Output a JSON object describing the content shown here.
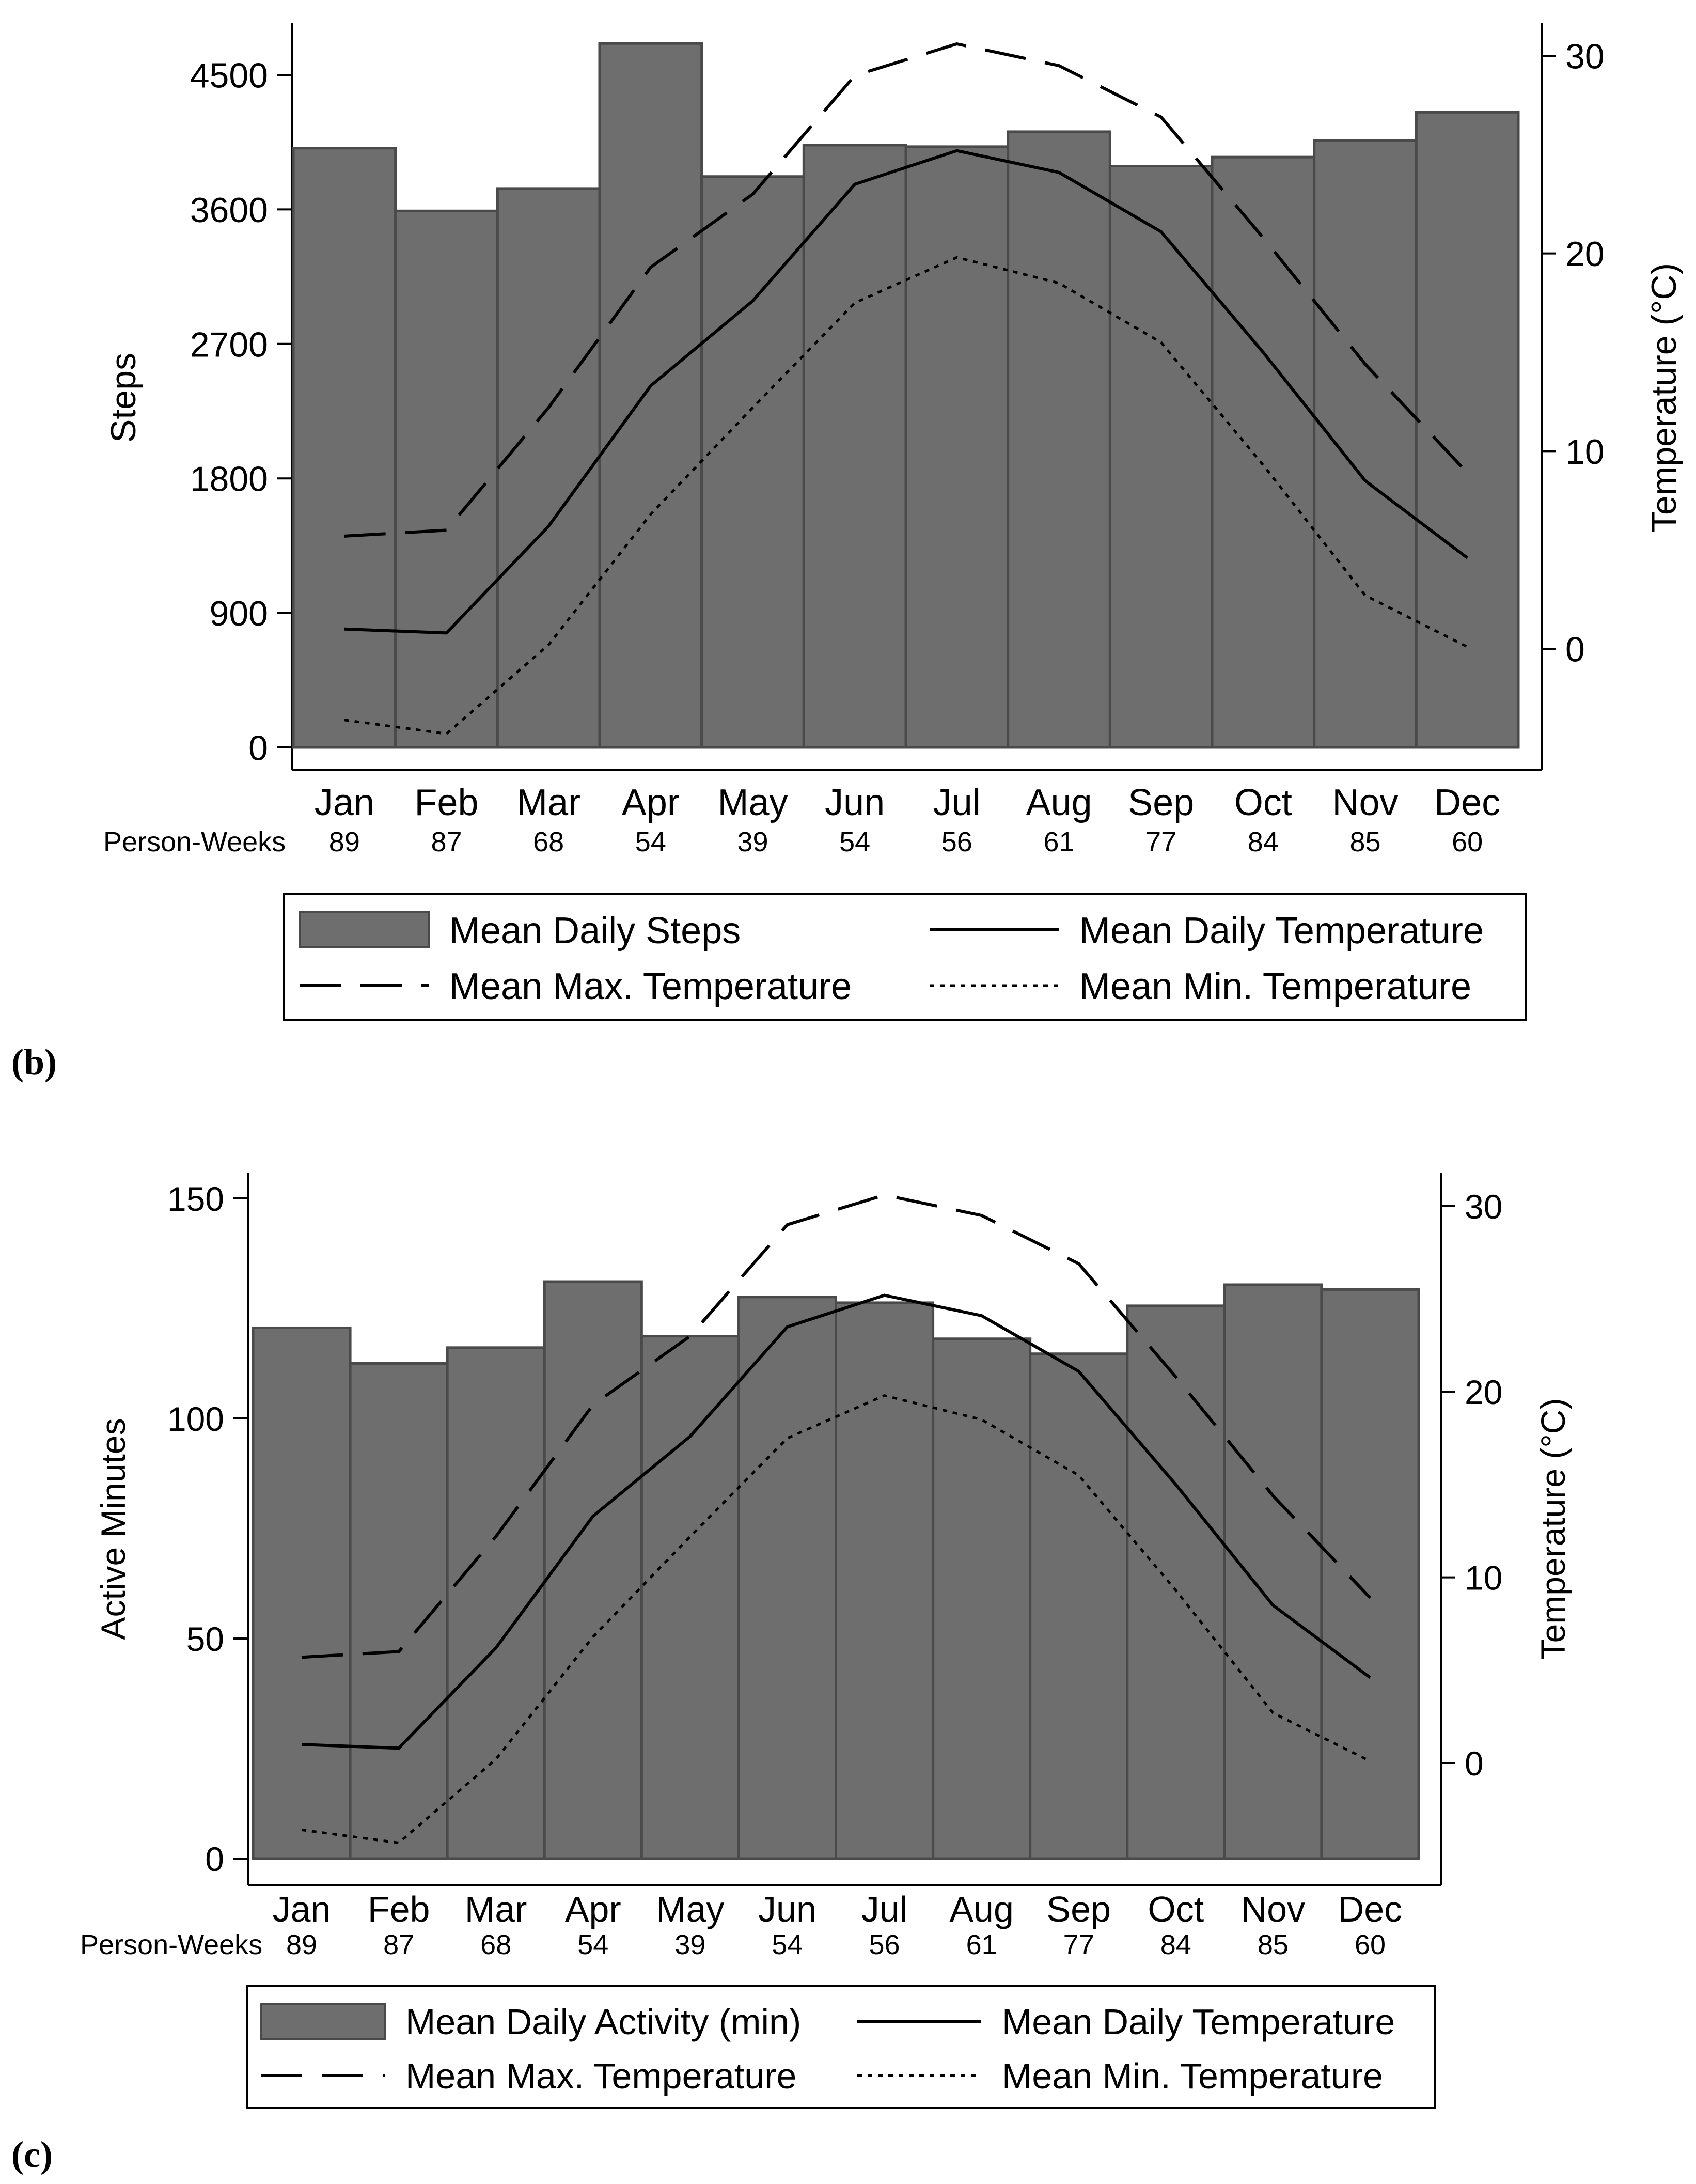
{
  "colors": {
    "bar_fill": "#6e6e6e",
    "bar_stroke": "#4a4a4a",
    "line": "#000000",
    "frame": "#000000",
    "background": "#ffffff"
  },
  "chart_data": [
    {
      "type": "bar+line",
      "panel_label": "b",
      "categories": [
        "Jan",
        "Feb",
        "Mar",
        "Apr",
        "May",
        "Jun",
        "Jul",
        "Aug",
        "Sep",
        "Oct",
        "Nov",
        "Dec"
      ],
      "person_weeks_title": "Person-Weeks",
      "person_weeks": [
        "89",
        "87",
        "68",
        "54",
        "39",
        "54",
        "56",
        "61",
        "77",
        "84",
        "85",
        "60"
      ],
      "left_axis": {
        "label": "Steps",
        "ticks": [
          0,
          900,
          1800,
          2700,
          3600,
          4500
        ],
        "tick_labels": [
          "0",
          "900",
          "1800",
          "2700",
          "3600",
          "4500"
        ],
        "range": [
          -15,
          4950
        ]
      },
      "right_axis": {
        "label": "Temperature (°C)",
        "ticks": [
          0,
          10,
          20,
          30
        ],
        "tick_labels": [
          "0",
          "10",
          "20",
          "30"
        ],
        "range": [
          -5,
          32
        ]
      },
      "series": [
        {
          "name": "Mean Daily Steps",
          "kind": "bar",
          "axis": "left",
          "values": [
            4010,
            3590,
            3740,
            4710,
            3820,
            4030,
            4020,
            4120,
            3890,
            3950,
            4060,
            4250
          ]
        },
        {
          "name": "Mean Daily Temperature",
          "kind": "line",
          "style": "solid",
          "axis": "right",
          "values": [
            1.0,
            0.8,
            6.2,
            13.3,
            17.6,
            23.5,
            25.2,
            24.1,
            21.1,
            15.0,
            8.5,
            4.6
          ]
        },
        {
          "name": "Mean Max. Temperature",
          "kind": "line",
          "style": "dashed",
          "axis": "right",
          "values": [
            5.7,
            6.0,
            12.2,
            19.3,
            23.0,
            29.0,
            30.6,
            29.5,
            26.9,
            20.8,
            14.4,
            8.9
          ]
        },
        {
          "name": "Mean Min. Temperature",
          "kind": "line",
          "style": "dotted",
          "axis": "right",
          "values": [
            -3.6,
            -4.3,
            0.2,
            6.8,
            12.2,
            17.5,
            19.8,
            18.5,
            15.5,
            9.3,
            2.7,
            0.1
          ]
        }
      ],
      "legend": {
        "position": "bottom",
        "items": [
          {
            "label": "Mean Daily Steps",
            "swatch": "bar"
          },
          {
            "label": "Mean Daily Temperature",
            "swatch": "solid"
          },
          {
            "label": "Mean Max. Temperature",
            "swatch": "dashed"
          },
          {
            "label": "Mean Min. Temperature",
            "swatch": "dotted"
          }
        ]
      }
    },
    {
      "type": "bar+line",
      "panel_label": "c",
      "categories": [
        "Jan",
        "Feb",
        "Mar",
        "Apr",
        "May",
        "Jun",
        "Jul",
        "Aug",
        "Sep",
        "Oct",
        "Nov",
        "Dec"
      ],
      "person_weeks_title": "Person-Weeks",
      "person_weeks": [
        "89",
        "87",
        "68",
        "54",
        "39",
        "54",
        "56",
        "61",
        "77",
        "84",
        "85",
        "60"
      ],
      "left_axis": {
        "label": "Active Minutes",
        "ticks": [
          0,
          50,
          100,
          150
        ],
        "tick_labels": [
          "0",
          "50",
          "100",
          "150"
        ],
        "range": [
          -1,
          156
        ]
      },
      "right_axis": {
        "label": "Temperature (°C)",
        "ticks": [
          0,
          10,
          20,
          30
        ],
        "tick_labels": [
          "0",
          "10",
          "20",
          "30"
        ],
        "range": [
          -5,
          32
        ]
      },
      "series": [
        {
          "name": "Mean Daily Activity (min)",
          "kind": "bar",
          "axis": "left",
          "values": [
            120.6,
            112.5,
            116.1,
            131.1,
            118.7,
            127.6,
            126.3,
            118.1,
            114.7,
            125.6,
            130.4,
            129.3
          ]
        },
        {
          "name": "Mean Daily Temperature",
          "kind": "line",
          "style": "solid",
          "axis": "right",
          "values": [
            1.0,
            0.8,
            6.2,
            13.3,
            17.6,
            23.5,
            25.2,
            24.1,
            21.1,
            15.0,
            8.5,
            4.6
          ]
        },
        {
          "name": "Mean Max. Temperature",
          "kind": "line",
          "style": "dashed",
          "axis": "right",
          "values": [
            5.7,
            6.0,
            12.2,
            19.3,
            23.0,
            29.0,
            30.6,
            29.5,
            26.9,
            20.8,
            14.4,
            8.9
          ]
        },
        {
          "name": "Mean Min. Temperature",
          "kind": "line",
          "style": "dotted",
          "axis": "right",
          "values": [
            -3.6,
            -4.3,
            0.2,
            6.8,
            12.2,
            17.5,
            19.8,
            18.5,
            15.5,
            9.3,
            2.7,
            0.1
          ]
        }
      ],
      "legend": {
        "position": "bottom",
        "items": [
          {
            "label": "Mean Daily Activity (min)",
            "swatch": "bar"
          },
          {
            "label": "Mean Daily Temperature",
            "swatch": "solid"
          },
          {
            "label": "Mean Max. Temperature",
            "swatch": "dashed"
          },
          {
            "label": "Mean Min. Temperature",
            "swatch": "dotted"
          }
        ]
      }
    }
  ]
}
